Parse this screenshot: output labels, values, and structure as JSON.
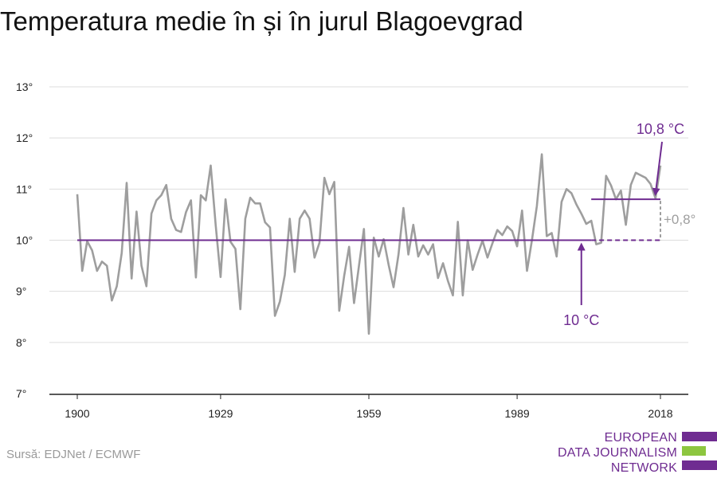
{
  "title": "Temperatura medie în și în jurul Blagoevgrad",
  "source": "Sursă: EDJNet / ECMWF",
  "logo": {
    "line1": "EUROPEAN",
    "line2": "DATA JOURNALISM",
    "line3": "NETWORK"
  },
  "colors": {
    "line": "#9e9e9e",
    "accent": "#6f2c91",
    "grid": "#dddddd",
    "logo_green": "#8dc63f"
  },
  "chart_data": {
    "type": "line",
    "title": "Temperatura medie în și în jurul Blagoevgrad",
    "xlabel": "",
    "ylabel": "",
    "xlim": [
      1900,
      2018
    ],
    "ylim": [
      7,
      13
    ],
    "x_ticks": [
      1900,
      1929,
      1959,
      1989,
      2018
    ],
    "y_ticks": [
      7,
      8,
      9,
      10,
      11,
      12,
      13
    ],
    "y_tick_labels": [
      "7°",
      "8°",
      "9°",
      "10°",
      "11°",
      "12°",
      "13°"
    ],
    "grid": true,
    "series": [
      {
        "x": [
          1900,
          1901,
          1902,
          1903,
          1904,
          1905,
          1906,
          1907,
          1908,
          1909,
          1910,
          1911,
          1912,
          1913,
          1914,
          1915,
          1916,
          1917,
          1918,
          1919,
          1920,
          1921,
          1922,
          1923,
          1924,
          1925,
          1926,
          1927,
          1928,
          1929,
          1930,
          1931,
          1932,
          1933,
          1934,
          1935,
          1936,
          1937,
          1938,
          1939,
          1940,
          1941,
          1942,
          1943,
          1944,
          1945,
          1946,
          1947,
          1948,
          1949,
          1950,
          1951,
          1952,
          1953,
          1954,
          1955,
          1956,
          1957,
          1958,
          1959,
          1960,
          1961,
          1962,
          1963,
          1964,
          1965,
          1966,
          1967,
          1968,
          1969,
          1970,
          1971,
          1972,
          1973,
          1974,
          1975,
          1976,
          1977,
          1978,
          1979,
          1980,
          1981,
          1982,
          1983,
          1984,
          1985,
          1986,
          1987,
          1988,
          1989,
          1990,
          1991,
          1992,
          1993,
          1994,
          1995,
          1996,
          1997,
          1998,
          1999,
          2000,
          2001,
          2002,
          2003,
          2004,
          2005,
          2006,
          2007,
          2008,
          2009,
          2010,
          2011,
          2012,
          2013,
          2014,
          2015,
          2016,
          2017,
          2018
        ],
        "values": [
          10.9,
          9.4,
          9.98,
          9.8,
          9.4,
          9.58,
          9.5,
          8.82,
          9.1,
          9.75,
          11.12,
          9.25,
          10.56,
          9.5,
          9.1,
          10.52,
          10.78,
          10.88,
          11.08,
          10.42,
          10.2,
          10.16,
          10.55,
          10.78,
          9.27,
          10.88,
          10.78,
          11.46,
          10.3,
          9.28,
          10.8,
          9.97,
          9.83,
          8.65,
          10.42,
          10.83,
          10.72,
          10.72,
          10.35,
          10.25,
          8.52,
          8.8,
          9.32,
          10.42,
          9.38,
          10.42,
          10.58,
          10.42,
          9.66,
          9.95,
          11.22,
          10.9,
          11.14,
          8.62,
          9.3,
          9.87,
          8.77,
          9.5,
          10.22,
          8.17,
          10.05,
          9.68,
          10.02,
          9.52,
          9.08,
          9.72,
          10.63,
          9.72,
          10.3,
          9.68,
          9.9,
          9.72,
          9.92,
          9.26,
          9.55,
          9.2,
          8.92,
          10.36,
          8.92,
          10.0,
          9.42,
          9.72,
          9.99,
          9.66,
          9.94,
          10.2,
          10.1,
          10.27,
          10.18,
          9.88,
          10.58,
          9.4,
          10.0,
          10.67,
          11.68,
          10.08,
          10.14,
          9.68,
          10.75,
          11.0,
          10.92,
          10.7,
          10.52,
          10.32,
          10.38,
          9.92,
          9.95,
          11.26,
          11.07,
          10.8,
          10.97,
          10.3,
          11.08,
          11.32,
          11.27,
          11.22,
          11.1,
          10.82,
          11.46
        ]
      }
    ],
    "baseline": {
      "value": 10,
      "label": "10 °C",
      "x_start": 1900,
      "x_end": 2018
    },
    "recent_average": {
      "value": 10.8,
      "label": "10,8 °C",
      "x_start": 2004,
      "x_end": 2018
    },
    "difference": {
      "label": "+0,8°"
    }
  }
}
